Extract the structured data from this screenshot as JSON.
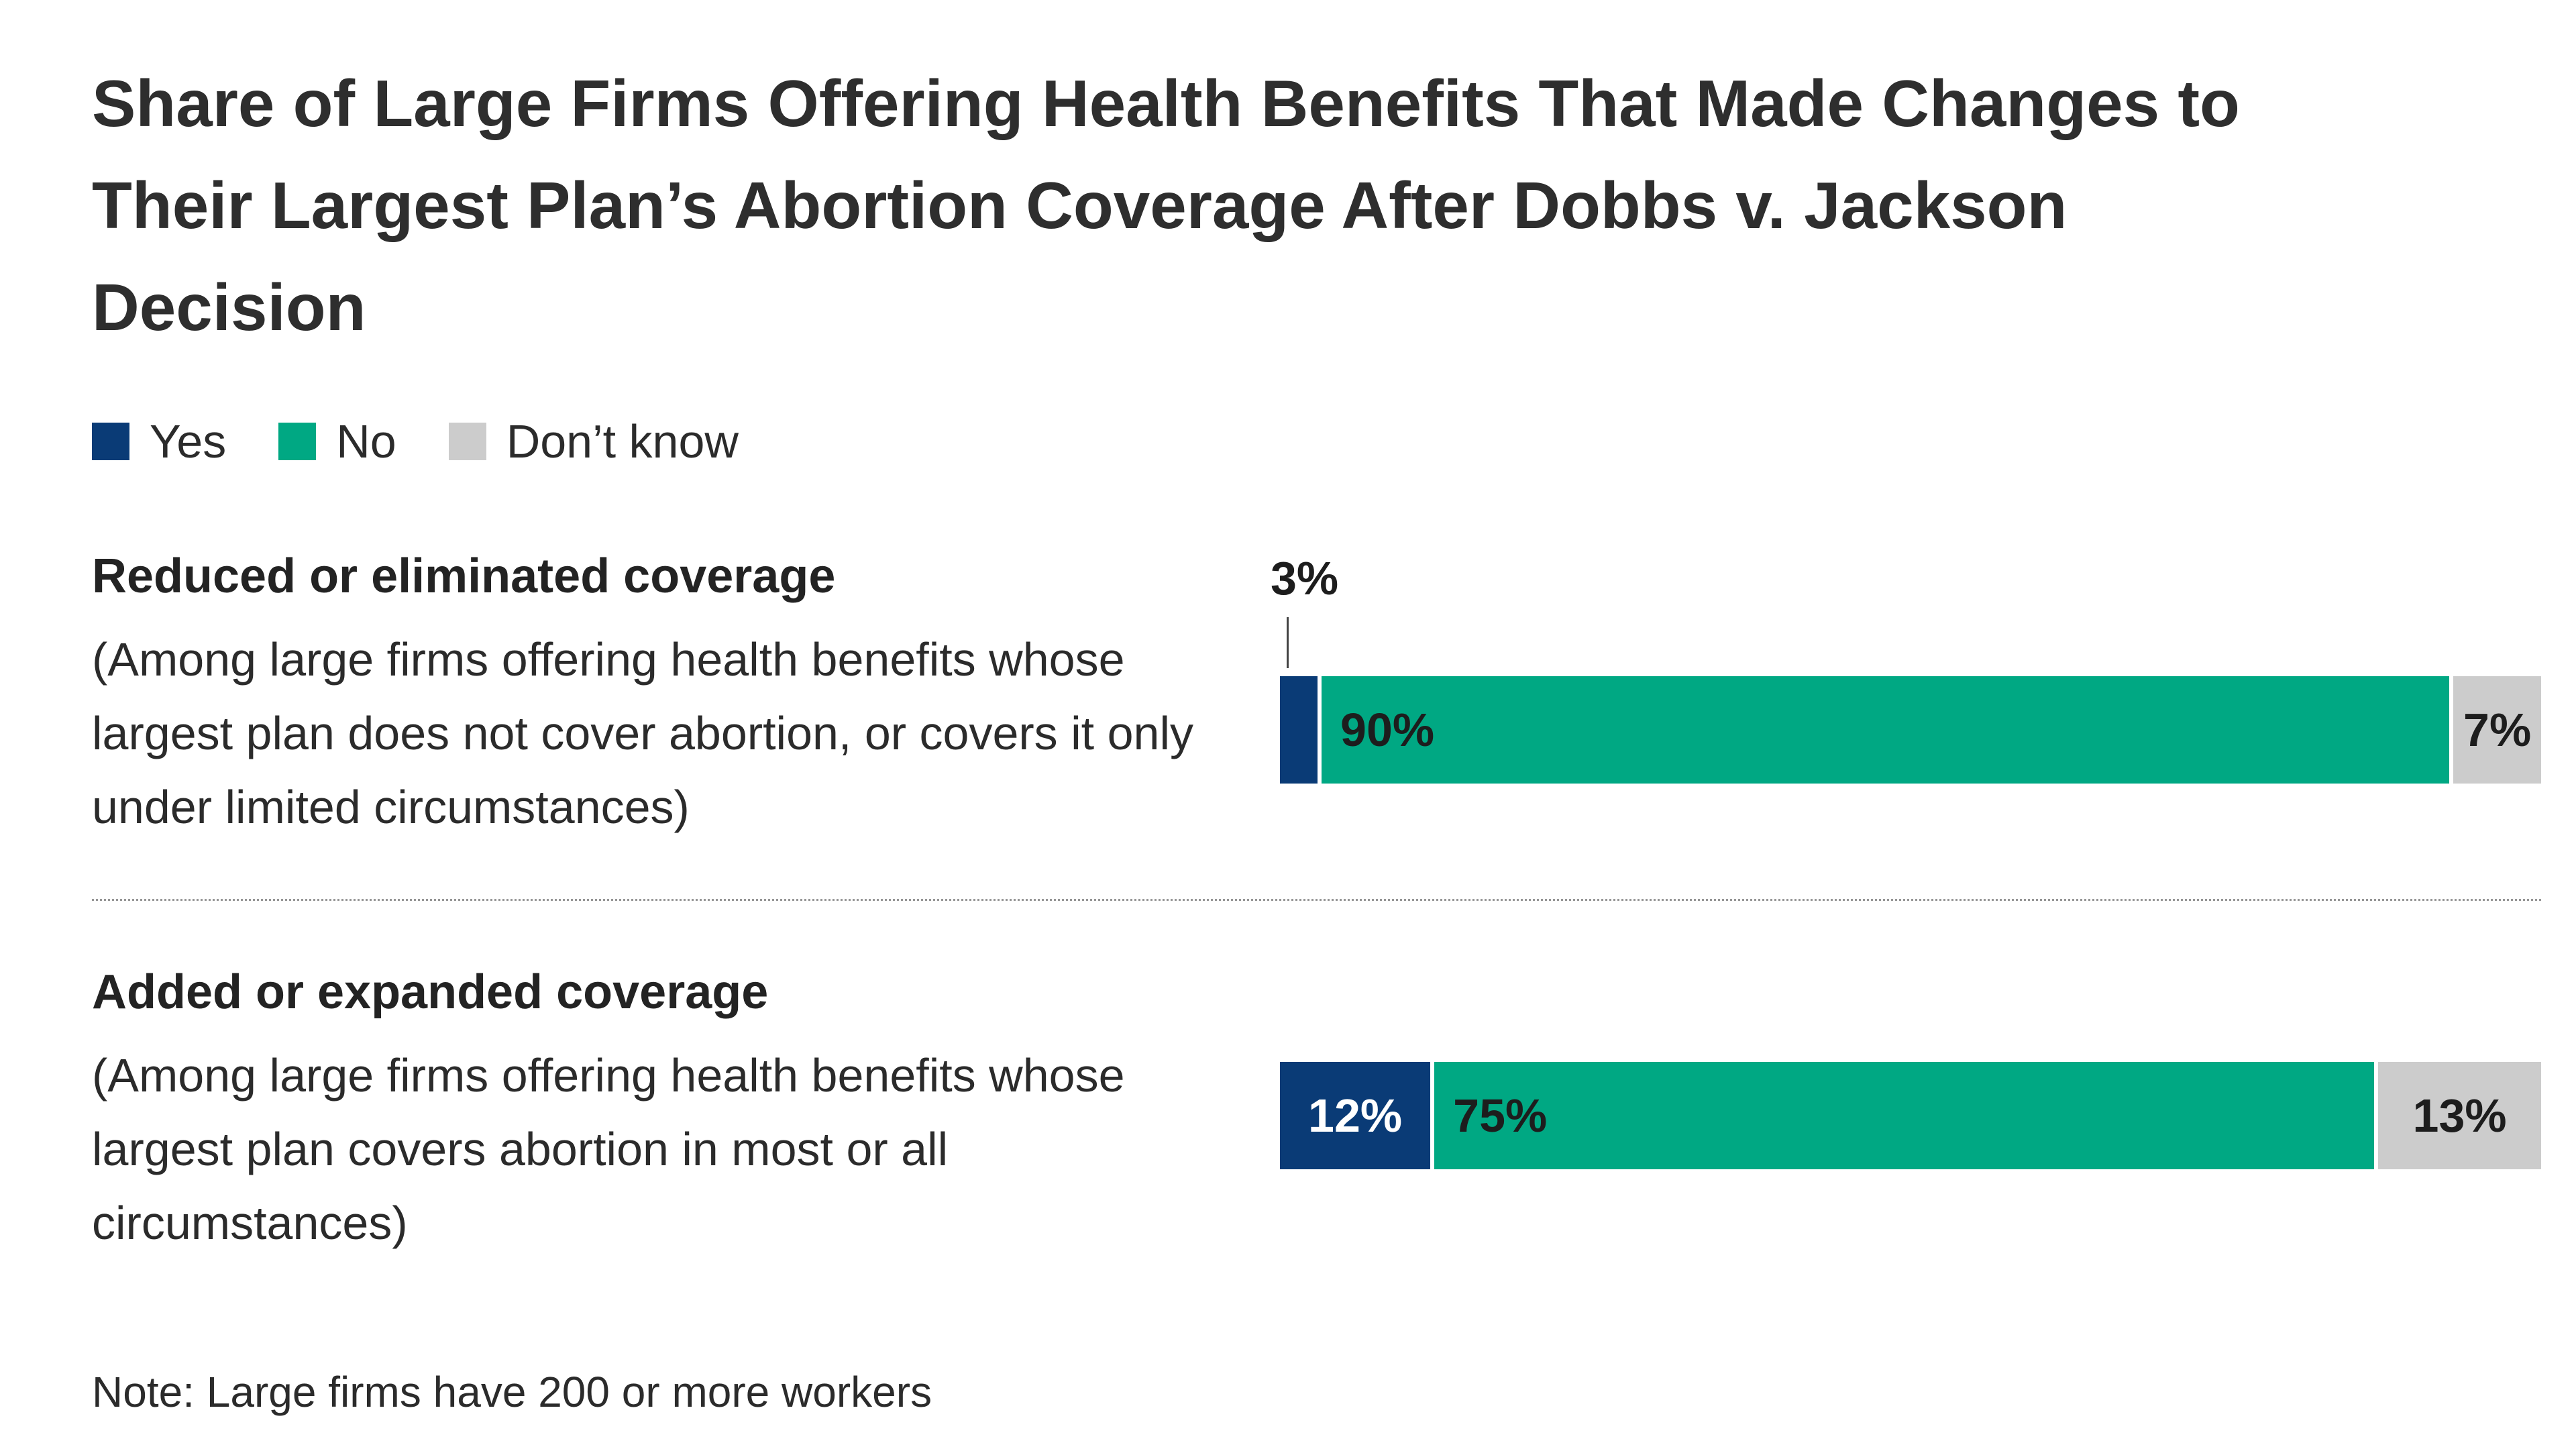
{
  "title": "Share of Large Firms Offering Health Benefits That Made Changes to Their Largest Plan’s Abortion Coverage After Dobbs v. Jackson Decision",
  "colors": {
    "yes": "#0a3b76",
    "no": "#00a883",
    "dont_know": "#cccccc",
    "text": "#2b2b2b",
    "tick": "#444444"
  },
  "legend": {
    "items": [
      {
        "label": "Yes"
      },
      {
        "label": "No"
      },
      {
        "label": "Don’t know"
      }
    ]
  },
  "rows": [
    {
      "label": "Reduced or eliminated coverage",
      "sublabel": "(Among large firms offering health benefits whose largest plan does not cover abortion, or covers it only under limited circumstances)",
      "segments": [
        {
          "name": "Yes",
          "value": 3,
          "display": "3%",
          "label_outside": true
        },
        {
          "name": "No",
          "value": 90,
          "display": "90%"
        },
        {
          "name": "Don’t know",
          "value": 7,
          "display": "7%"
        }
      ]
    },
    {
      "label": "Added or expanded coverage",
      "sublabel": "(Among large firms offering health benefits whose largest plan covers abortion in most or all circumstances)",
      "segments": [
        {
          "name": "Yes",
          "value": 12,
          "display": "12%"
        },
        {
          "name": "No",
          "value": 75,
          "display": "75%"
        },
        {
          "name": "Don’t know",
          "value": 13,
          "display": "13%"
        }
      ]
    }
  ],
  "note": {
    "text": "Note: Large firms have 200 or more workers"
  },
  "chart_data": {
    "type": "bar",
    "orientation": "horizontal",
    "stacked": true,
    "title": "Share of Large Firms Offering Health Benefits That Made Changes to Their Largest Plan’s Abortion Coverage After Dobbs v. Jackson Decision",
    "categories": [
      "Reduced or eliminated coverage (Among large firms offering health benefits whose largest plan does not cover abortion, or covers it only under limited circumstances)",
      "Added or expanded coverage (Among large firms offering health benefits whose largest plan covers abortion in most or all circumstances)"
    ],
    "series": [
      {
        "name": "Yes",
        "values": [
          3,
          12
        ],
        "color": "#0a3b76"
      },
      {
        "name": "No",
        "values": [
          90,
          75
        ],
        "color": "#00a883"
      },
      {
        "name": "Don’t know",
        "values": [
          7,
          13
        ],
        "color": "#cccccc"
      }
    ],
    "value_unit": "%",
    "xlim": [
      0,
      100
    ],
    "grid": false,
    "legend_position": "top-left",
    "note": "Note: Large firms have 200 or more workers"
  }
}
